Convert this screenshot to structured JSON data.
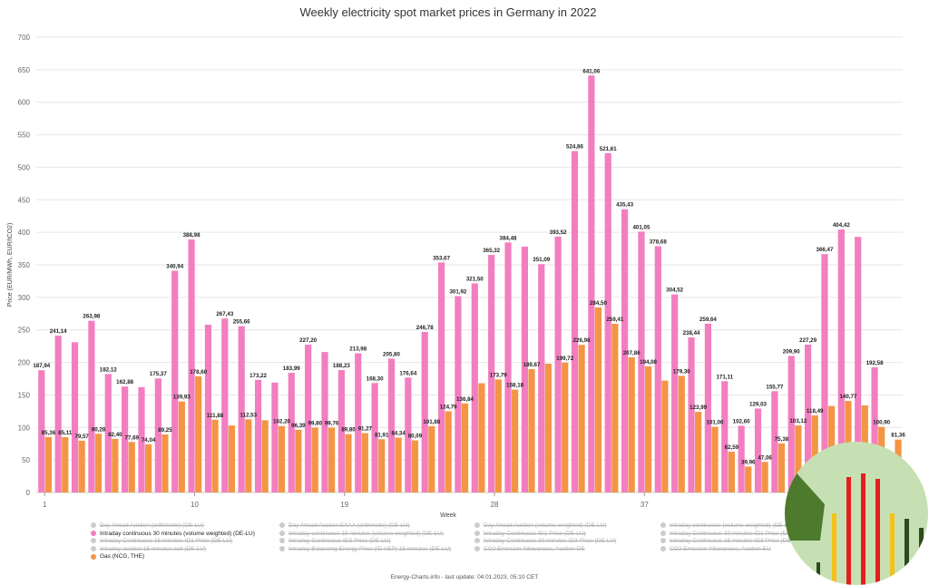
{
  "page": {
    "footer": "Energy-Charts.info - last update: 04.01.2023, 05:10 CET"
  },
  "colors": {
    "intraday": "#f27ec0",
    "gas": "#f39545",
    "logo_bg": "#c7e0b3",
    "logo_dark": "#4d7a2d",
    "logo_red": "#e31e1e",
    "logo_yellow": "#f2c21b"
  },
  "legend": [
    {
      "label": "Day Ahead Auction (arithmetic) (DE-LU)",
      "active": false
    },
    {
      "label": "Intraday continuous 30 minutes (volume weighted) (DE-LU)",
      "active": true,
      "color": "#f27ec0"
    },
    {
      "label": "Intraday Continuous 15 minutes ID1-Price (DE-LU)",
      "active": false
    },
    {
      "label": "Intraday auction 15 minutes call (DE-LU)",
      "active": false
    },
    {
      "label": "Gas (NCG, THE)",
      "active": true,
      "color": "#f39545"
    },
    {
      "label": "Day Ahead Auction EXAA (arithmetic) (DE-LU)",
      "active": false
    },
    {
      "label": "Intraday continuous 15 minutes (volume weighted) (DE-LU)",
      "active": false
    },
    {
      "label": "Intraday Continuous ID3-Price (DE-LU)",
      "active": false
    },
    {
      "label": "Intraday Balancing Energy Price (ID AEP) 15 minutes (DE-LU)",
      "active": false
    },
    {
      "label": "Day Ahead Auction (volume weighted) (DE-LU)",
      "active": false
    },
    {
      "label": "Intraday Continuous ID1-Price (DE-LU)",
      "active": false
    },
    {
      "label": "Intraday Continuous 30 minutes ID3-Price (DE-LU)",
      "active": false
    },
    {
      "label": "CO2 Emission Allowances, Auction DE",
      "active": false
    },
    {
      "label": "Intraday continuous (volume weighted) (DE-LU)",
      "active": false
    },
    {
      "label": "Intraday Continuous 30 minutes ID1-Price (DE-LU)",
      "active": false
    },
    {
      "label": "Intraday Continuous 15 minutes ID3-Price (DE-LU)",
      "active": false
    },
    {
      "label": "CO2 Emission Allowances, Auction EU",
      "active": false
    }
  ],
  "chart_data": {
    "type": "bar",
    "title": "Weekly electricity spot market prices in Germany in 2022",
    "xlabel": "Week",
    "ylabel": "Price (EUR/MWh, EUR/tCO2)",
    "ylim": [
      0,
      700
    ],
    "yticks": [
      0,
      50,
      100,
      150,
      200,
      250,
      300,
      350,
      400,
      450,
      500,
      550,
      600,
      650,
      700
    ],
    "xticks": [
      1,
      10,
      19,
      28,
      37
    ],
    "grid": true,
    "legend_position": "bottom",
    "categories": [
      1,
      2,
      3,
      4,
      5,
      6,
      7,
      8,
      9,
      10,
      11,
      12,
      13,
      14,
      15,
      16,
      17,
      18,
      19,
      20,
      21,
      22,
      23,
      24,
      25,
      26,
      27,
      28,
      29,
      30,
      31,
      32,
      33,
      34,
      35,
      36,
      37,
      38,
      39,
      40,
      41,
      42,
      43,
      44,
      45,
      46,
      47,
      48,
      49,
      50,
      51,
      52
    ],
    "series": [
      {
        "name": "Intraday continuous 30 minutes (volume weighted) (DE-LU)",
        "values": [
          187.94,
          241.14,
          231,
          263.98,
          182.12,
          162.88,
          162,
          175.37,
          340.94,
          388.98,
          258,
          267.43,
          255.66,
          173.22,
          169,
          183.99,
          227.2,
          216,
          188.23,
          213.98,
          168.3,
          205.8,
          176.64,
          246.78,
          353.67,
          301.92,
          321.5,
          365.32,
          384.48,
          378,
          351.09,
          393.52,
          524.86,
          641.06,
          521.61,
          435.43,
          401.05,
          378.68,
          304.52,
          238.44,
          259.64,
          171.11,
          102.6,
          129.03,
          155.77,
          209.9,
          227.29,
          366.47,
          404.42,
          393,
          192.58,
          null
        ],
        "labels": [
          "187,94",
          "241,14",
          "",
          "263,98",
          "182,12",
          "162,88",
          "",
          "175,37",
          "340,94",
          "388,98",
          "",
          "267,43",
          "255,66",
          "173,22",
          "",
          "183,99",
          "227,20",
          "",
          "188,23",
          "213,98",
          "168,30",
          "205,80",
          "176,64",
          "246,78",
          "353,67",
          "301,92",
          "321,50",
          "365,32",
          "384,48",
          "",
          "351,09",
          "393,52",
          "524,86",
          "641,06",
          "521,61",
          "435,43",
          "401,05",
          "378,68",
          "304,52",
          "238,44",
          "259,64",
          "171,11",
          "102,60",
          "129,03",
          "155,77",
          "209,90",
          "227,29",
          "366,47",
          "404,42",
          "",
          "192,58",
          ""
        ]
      },
      {
        "name": "Gas (NCG, THE)",
        "values": [
          85.36,
          85.11,
          79.57,
          90.28,
          82.4,
          77.69,
          74.04,
          89.25,
          139.93,
          178.6,
          111.88,
          103,
          112.53,
          111,
          102.2,
          96.39,
          99.8,
          99.76,
          89.8,
          91.27,
          81.91,
          84.34,
          80.09,
          101.88,
          124.79,
          136.84,
          168,
          173.79,
          158.18,
          189.67,
          198,
          199.72,
          226.98,
          284.5,
          259.41,
          207.86,
          194.08,
          172,
          179.3,
          123.99,
          101,
          62.59,
          39.96,
          47.06,
          75.38,
          103.12,
          118.49,
          133,
          140.77,
          134,
          100.9,
          81.36
        ],
        "labels": [
          "85,36",
          "85,11",
          "79,57",
          "90,28",
          "82,40",
          "77,69",
          "74,04",
          "89,25",
          "139,93",
          "178,60",
          "111,88",
          "",
          "112,53",
          "",
          "102,20",
          "96,39",
          "99,80",
          "99,76",
          "89,80",
          "91,27",
          "81,91",
          "84,34",
          "80,09",
          "101,88",
          "124,79",
          "136,84",
          "",
          "173,79",
          "158,18",
          "189,67",
          "",
          "199,72",
          "226,98",
          "284,50",
          "259,41",
          "207,86",
          "194,08",
          "",
          "179,30",
          "123,99",
          "101,00",
          "62,59",
          "39,96",
          "47,06",
          "75,38",
          "103,12",
          "118,49",
          "",
          "140,77",
          "",
          "100,90",
          "81,36"
        ]
      }
    ]
  }
}
